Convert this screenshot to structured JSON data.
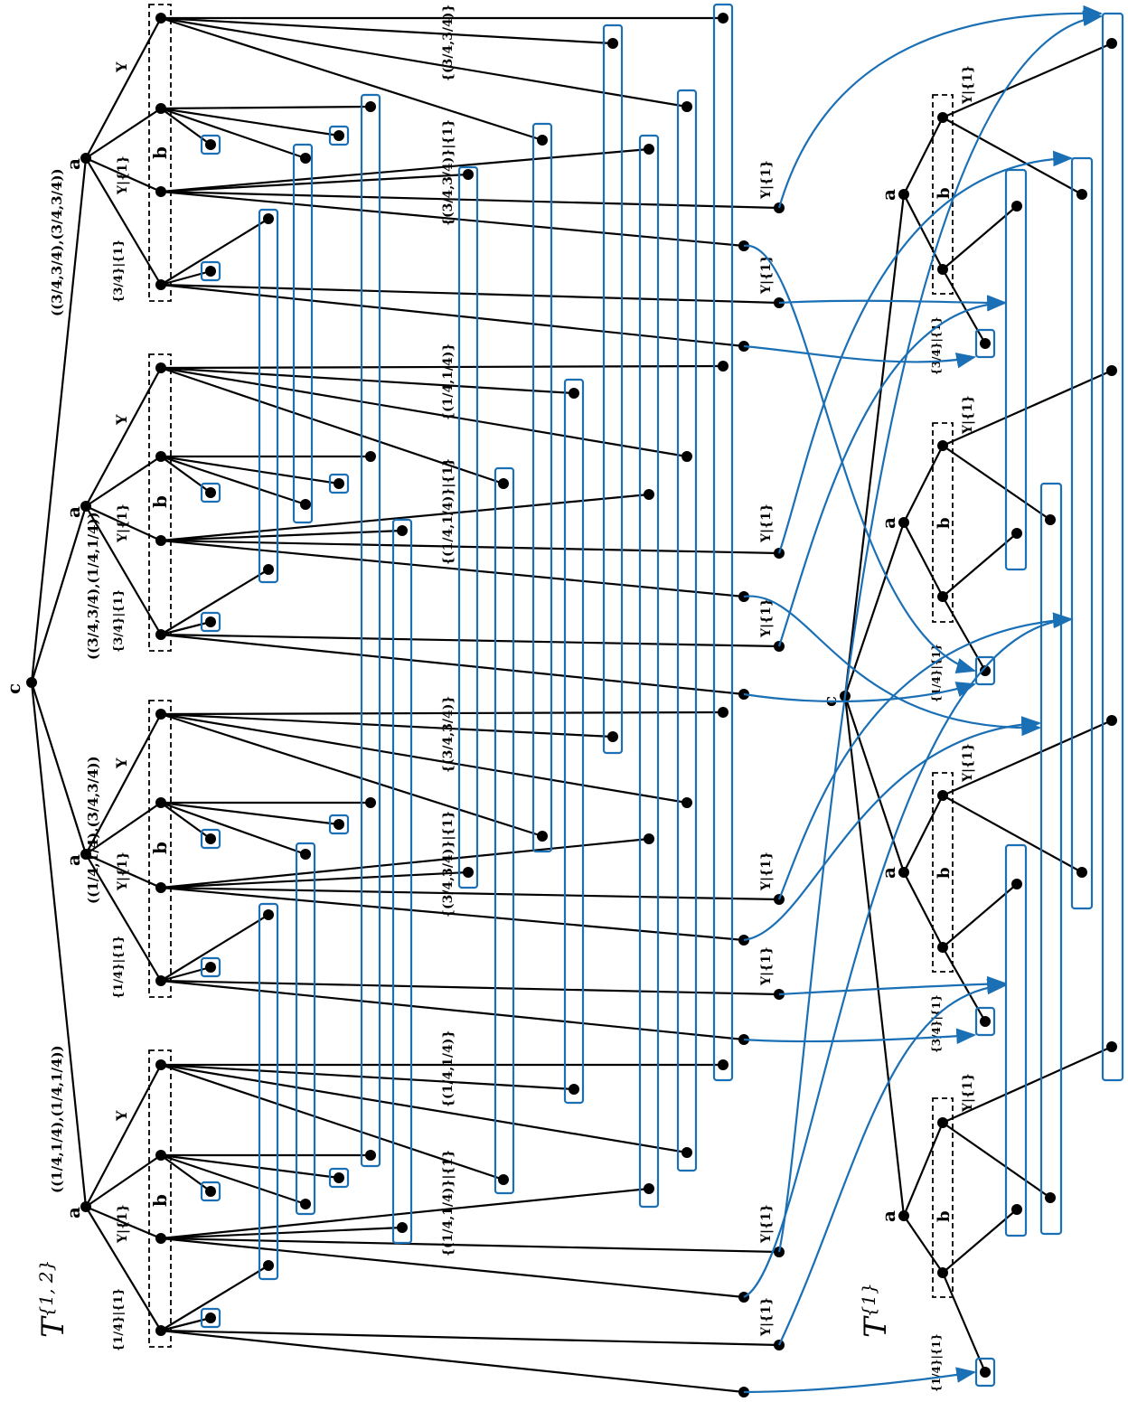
{
  "diagram": {
    "title_left": "T",
    "title_left_sup": "{1, 2}",
    "title_right": "T",
    "title_right_sup": "{1}",
    "labels": {
      "a": "a",
      "b": "b",
      "c": "c",
      "Y": "Y",
      "Y_restricted": "Y|{1}",
      "frac_quarter": "{1/4}|{1}",
      "frac_three_quarter": "{3/4}|{1}",
      "pair_11_11": "((1/4,1/4),(1/4,1/4))",
      "pair_11_33": "((1/4,1/4),(3/4,3/4))",
      "pair_33_11": "((3/4,3/4),(1/4,1/4))",
      "pair_33_33": "((3/4,3/4),(3/4,3/4))",
      "set_11": "{(1/4,1/4)}",
      "set_33": "{(3/4,3/4)}",
      "set_11_14": "{(1/4,1/4)}|{1}",
      "set_33_34": "{(3/4,3/4)}|{1}"
    },
    "colors": {
      "edges": "#000000",
      "info_sets": "#1a6fb5"
    }
  }
}
